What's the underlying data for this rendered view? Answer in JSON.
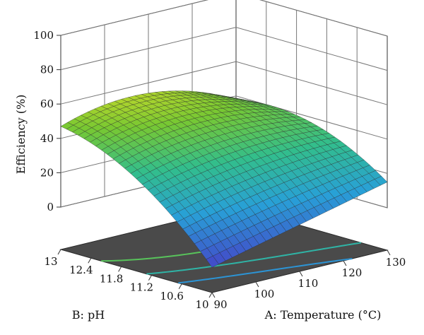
{
  "chart_data": {
    "type": "surface3d",
    "title": "",
    "zlabel": "Efficiency (%)",
    "xlabel": "A: Temperature (°C)",
    "ylabel": "B: pH",
    "zlim": [
      0,
      100
    ],
    "z_ticks": [
      "0",
      "20",
      "40",
      "60",
      "80",
      "100"
    ],
    "x_ticks": [
      "90",
      "100",
      "110",
      "120",
      "130"
    ],
    "y_ticks": [
      "10",
      "10.6",
      "11.2",
      "11.8",
      "12.4",
      "13"
    ],
    "x_range": [
      90,
      130
    ],
    "y_range": [
      10,
      13
    ],
    "grid": true,
    "colormap": "blue-cyan-green-yellow-red",
    "projected_contours": true,
    "corner_values": [
      {
        "temperature": 90,
        "ph": 13,
        "efficiency": 47
      },
      {
        "temperature": 90,
        "ph": 10,
        "efficiency": -10
      },
      {
        "temperature": 130,
        "ph": 10,
        "efficiency": 15
      },
      {
        "temperature": 110,
        "ph": 12.6,
        "efficiency": 80
      }
    ]
  }
}
